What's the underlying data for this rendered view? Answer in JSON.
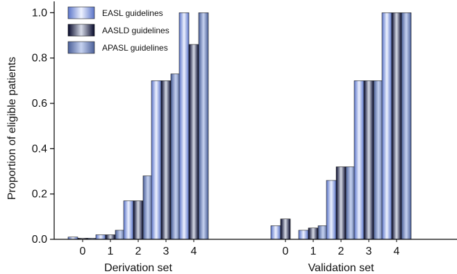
{
  "chart_data": {
    "type": "bar",
    "ylabel": "Proportion of eligible patients",
    "ylim": [
      0,
      1.05
    ],
    "yticks": [
      "0.0",
      "0.2",
      "0.4",
      "0.6",
      "0.8",
      "1.0"
    ],
    "yticks_values": [
      0,
      0.2,
      0.4,
      0.6,
      0.8,
      1.0
    ],
    "legend_position": "top-left",
    "series": [
      {
        "name": "EASL guidelines",
        "colors": {
          "edge": "#5a74c8",
          "mid": "#eef2ff"
        }
      },
      {
        "name": "AASLD guidelines",
        "colors": {
          "edge": "#05082a",
          "mid": "#d7dbe8"
        }
      },
      {
        "name": "APASL guidelines",
        "colors": {
          "edge": "#4a5f98",
          "mid": "#c6d2f0"
        }
      }
    ],
    "groups": [
      {
        "label": "Derivation set",
        "categories": [
          "0",
          "1",
          "2",
          "3",
          "4"
        ],
        "values": {
          "EASL guidelines": [
            0.01,
            0.02,
            0.17,
            0.7,
            1.0
          ],
          "AASLD guidelines": [
            0.005,
            0.02,
            0.17,
            0.7,
            0.86
          ],
          "APASL guidelines": [
            0.005,
            0.04,
            0.28,
            0.73,
            1.0
          ]
        }
      },
      {
        "label": "Validation set",
        "categories": [
          "0",
          "1",
          "2",
          "3",
          "4"
        ],
        "values": {
          "EASL guidelines": [
            0.06,
            0.04,
            0.26,
            0.7,
            1.0
          ],
          "AASLD guidelines": [
            0.09,
            0.05,
            0.32,
            0.7,
            1.0
          ],
          "APASL guidelines": [
            0.0,
            0.06,
            0.32,
            0.7,
            1.0
          ]
        }
      }
    ]
  }
}
